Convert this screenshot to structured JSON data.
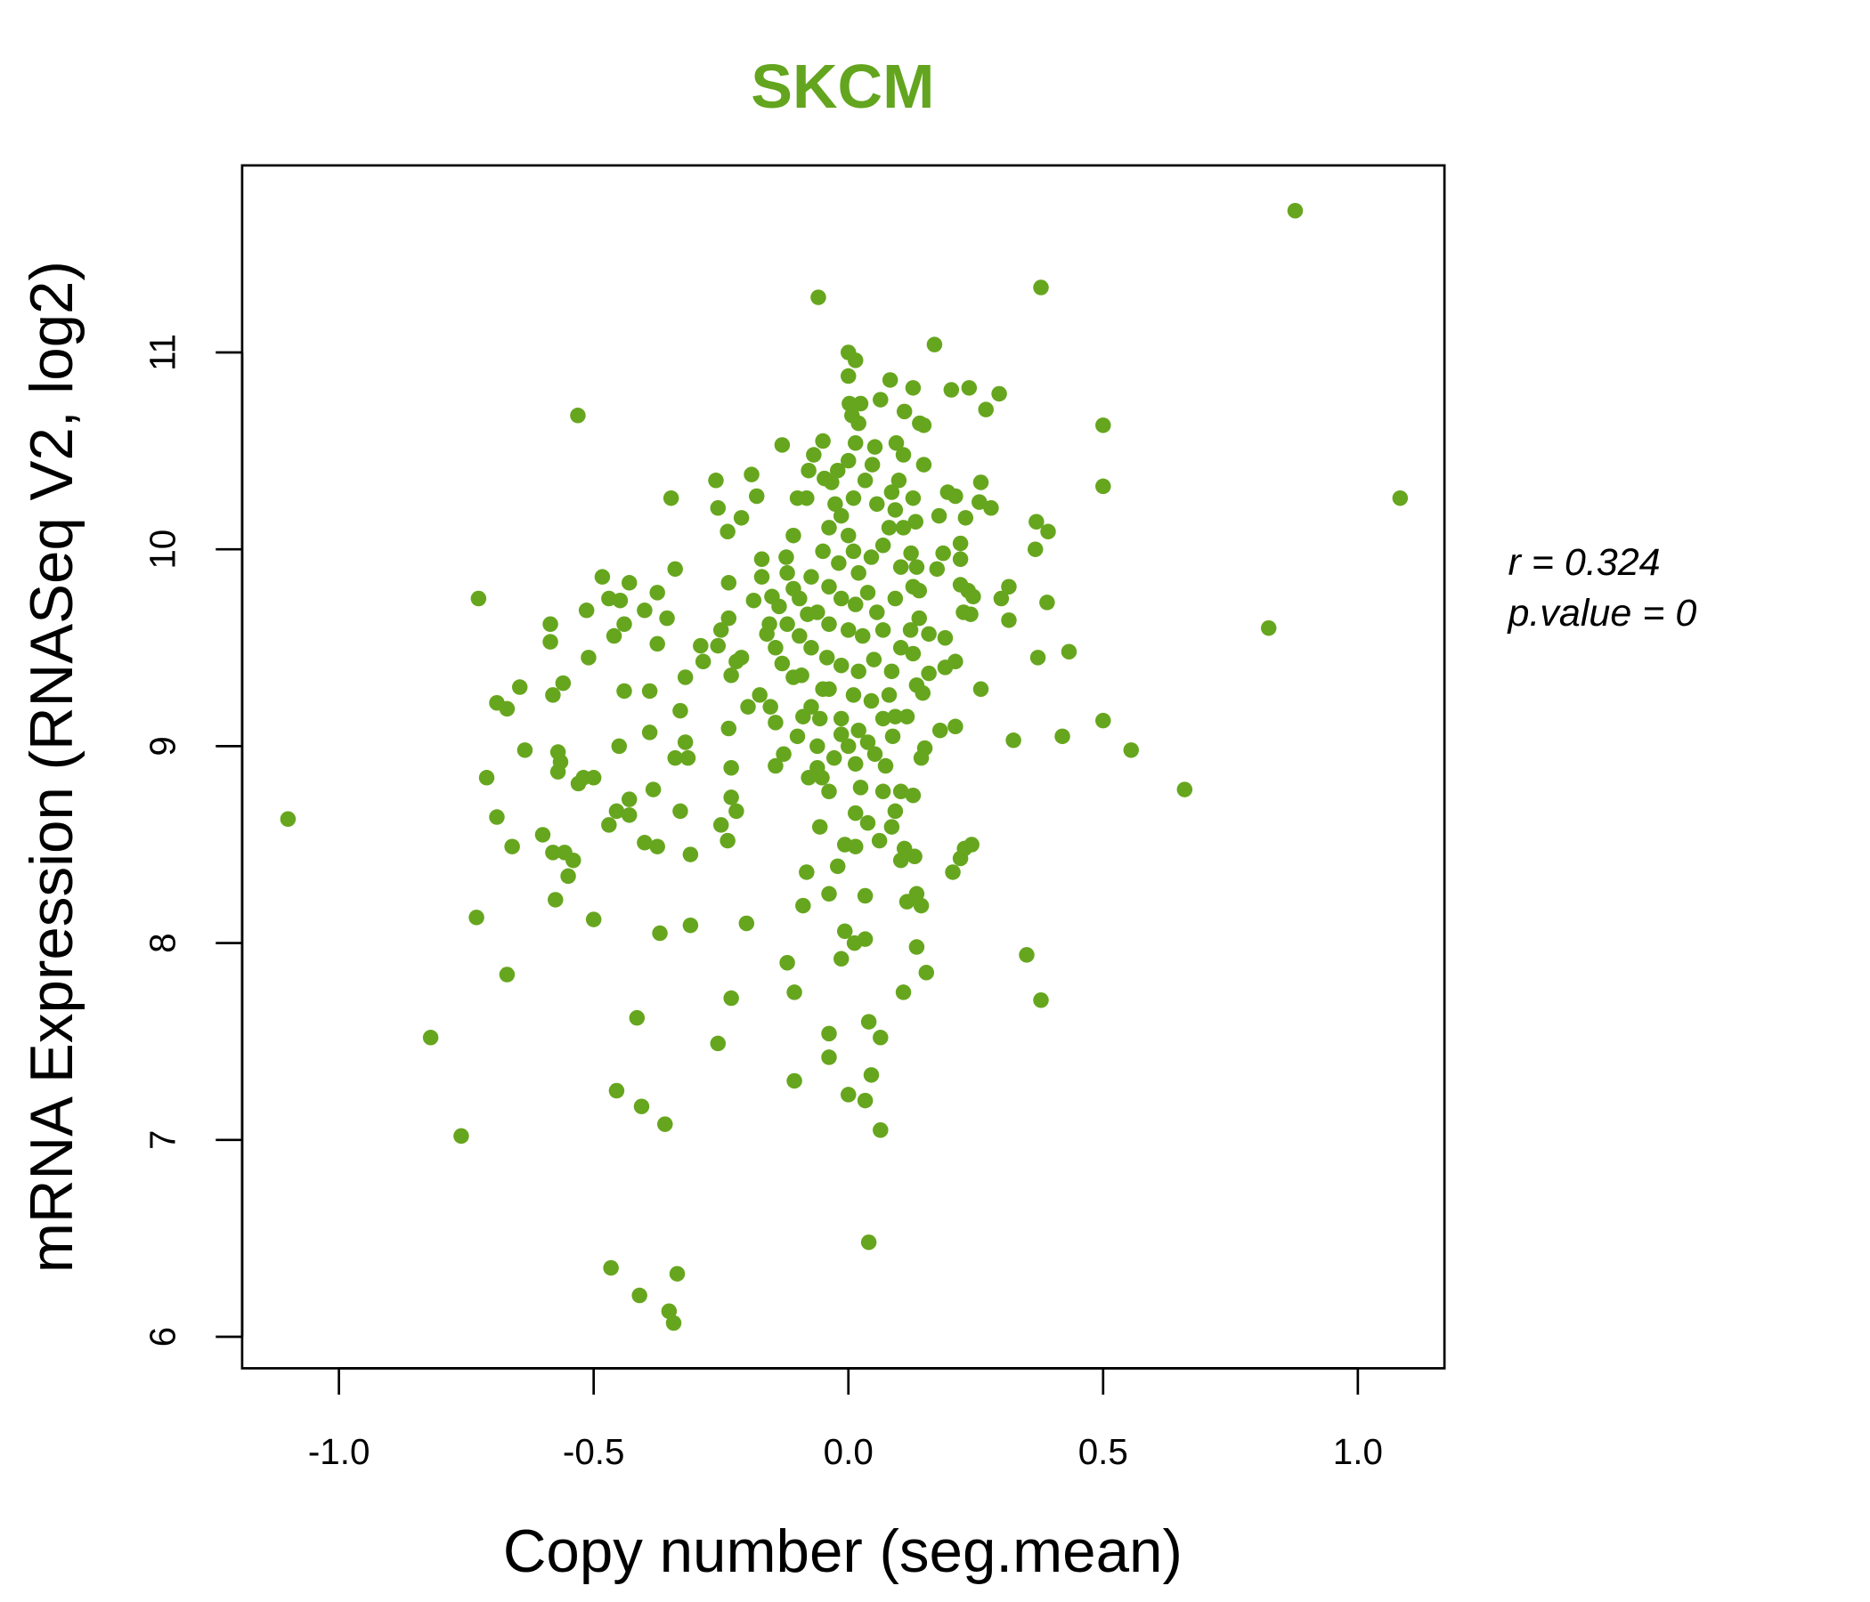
{
  "chart_data": {
    "type": "scatter",
    "title": "SKCM",
    "xlabel": "Copy number (seg.mean)",
    "ylabel": "mRNA Expression (RNASeq V2, log2)",
    "xlim": [
      -1.19,
      1.17
    ],
    "ylim": [
      5.84,
      11.95
    ],
    "x_ticks": [
      -1.0,
      -0.5,
      0.0,
      0.5,
      1.0
    ],
    "x_tick_labels": [
      "-1.0",
      "-0.5",
      "0.0",
      "0.5",
      "1.0"
    ],
    "y_ticks": [
      6,
      7,
      8,
      9,
      10,
      11
    ],
    "y_tick_labels": [
      "6",
      "7",
      "8",
      "9",
      "10",
      "11"
    ],
    "grid": false,
    "annotations": {
      "r": "r = 0.324",
      "p": "p.value = 0"
    },
    "colors": {
      "title": "#63A51E",
      "points": "#66A61E"
    },
    "points": [
      [
        0.877,
        11.72
      ],
      [
        0.378,
        11.33
      ],
      [
        -0.059,
        11.28
      ],
      [
        0.169,
        11.04
      ],
      [
        1.083,
        10.26
      ],
      [
        0.825,
        9.6
      ],
      [
        0.66,
        8.78
      ],
      [
        -1.1,
        8.63
      ],
      [
        0.5,
        10.63
      ],
      [
        0.5,
        10.32
      ],
      [
        0.5,
        9.13
      ],
      [
        0.555,
        8.98
      ],
      [
        0.42,
        9.05
      ],
      [
        0.324,
        9.03
      ],
      [
        0.433,
        9.48
      ],
      [
        0.372,
        9.45
      ],
      [
        0.392,
        10.09
      ],
      [
        0.369,
        10.14
      ],
      [
        0.367,
        10.0
      ],
      [
        0.39,
        9.73
      ],
      [
        0.315,
        9.81
      ],
      [
        0.315,
        9.64
      ],
      [
        0.3,
        9.75
      ],
      [
        0.35,
        7.94
      ],
      [
        0.378,
        7.71
      ],
      [
        -0.531,
        10.68
      ],
      [
        -0.348,
        10.26
      ],
      [
        -0.726,
        9.75
      ],
      [
        -0.82,
        7.52
      ],
      [
        -0.76,
        7.02
      ],
      [
        -0.73,
        8.13
      ],
      [
        -0.67,
        7.84
      ],
      [
        -0.71,
        8.84
      ],
      [
        -0.69,
        8.64
      ],
      [
        -0.66,
        8.49
      ],
      [
        -0.69,
        9.22
      ],
      [
        -0.67,
        9.19
      ],
      [
        -0.645,
        9.3
      ],
      [
        -0.635,
        8.98
      ],
      [
        -0.585,
        9.62
      ],
      [
        -0.585,
        9.53
      ],
      [
        -0.58,
        9.26
      ],
      [
        -0.56,
        9.32
      ],
      [
        -0.6,
        8.55
      ],
      [
        -0.58,
        8.46
      ],
      [
        -0.557,
        8.46
      ],
      [
        -0.54,
        8.42
      ],
      [
        -0.55,
        8.34
      ],
      [
        -0.575,
        8.22
      ],
      [
        -0.57,
        8.97
      ],
      [
        -0.565,
        8.92
      ],
      [
        -0.57,
        8.87
      ],
      [
        -0.53,
        8.81
      ],
      [
        -0.52,
        8.84
      ],
      [
        -0.5,
        8.84
      ],
      [
        -0.5,
        8.12
      ],
      [
        -0.51,
        9.45
      ],
      [
        -0.514,
        9.69
      ],
      [
        -0.483,
        9.86
      ],
      [
        -0.47,
        9.75
      ],
      [
        -0.46,
        9.56
      ],
      [
        -0.448,
        9.74
      ],
      [
        -0.44,
        9.62
      ],
      [
        -0.43,
        9.83
      ],
      [
        -0.44,
        9.28
      ],
      [
        -0.45,
        9.0
      ],
      [
        -0.47,
        8.6
      ],
      [
        -0.455,
        8.67
      ],
      [
        -0.43,
        8.65
      ],
      [
        -0.43,
        8.73
      ],
      [
        -0.4,
        9.69
      ],
      [
        -0.375,
        9.78
      ],
      [
        -0.375,
        9.52
      ],
      [
        -0.356,
        9.65
      ],
      [
        -0.34,
        9.9
      ],
      [
        -0.39,
        9.28
      ],
      [
        -0.39,
        9.07
      ],
      [
        -0.383,
        8.78
      ],
      [
        -0.4,
        8.51
      ],
      [
        -0.375,
        8.49
      ],
      [
        -0.33,
        9.18
      ],
      [
        -0.32,
        9.35
      ],
      [
        -0.32,
        9.02
      ],
      [
        -0.34,
        8.94
      ],
      [
        -0.315,
        8.94
      ],
      [
        -0.33,
        8.67
      ],
      [
        -0.31,
        8.45
      ],
      [
        -0.37,
        8.05
      ],
      [
        -0.31,
        8.09
      ],
      [
        -0.415,
        7.62
      ],
      [
        -0.455,
        7.25
      ],
      [
        -0.406,
        7.17
      ],
      [
        -0.36,
        7.08
      ],
      [
        -0.466,
        6.35
      ],
      [
        -0.41,
        6.21
      ],
      [
        -0.336,
        6.32
      ],
      [
        -0.352,
        6.13
      ],
      [
        -0.343,
        6.07
      ],
      [
        -0.26,
        10.35
      ],
      [
        -0.256,
        10.21
      ],
      [
        -0.237,
        10.09
      ],
      [
        -0.21,
        10.16
      ],
      [
        -0.19,
        10.38
      ],
      [
        -0.18,
        10.27
      ],
      [
        -0.13,
        10.53
      ],
      [
        -0.29,
        9.51
      ],
      [
        -0.285,
        9.43
      ],
      [
        -0.256,
        9.51
      ],
      [
        -0.25,
        9.59
      ],
      [
        -0.235,
        9.83
      ],
      [
        -0.235,
        9.65
      ],
      [
        -0.23,
        9.36
      ],
      [
        -0.22,
        9.43
      ],
      [
        -0.21,
        9.45
      ],
      [
        -0.235,
        9.09
      ],
      [
        -0.23,
        8.89
      ],
      [
        -0.23,
        8.74
      ],
      [
        -0.22,
        8.67
      ],
      [
        -0.25,
        8.6
      ],
      [
        -0.237,
        8.52
      ],
      [
        -0.2,
        8.1
      ],
      [
        -0.23,
        7.72
      ],
      [
        -0.256,
        7.49
      ],
      [
        -0.197,
        9.2
      ],
      [
        -0.174,
        9.26
      ],
      [
        -0.186,
        9.74
      ],
      [
        -0.17,
        9.95
      ],
      [
        -0.17,
        9.86
      ],
      [
        -0.15,
        9.76
      ],
      [
        -0.16,
        9.57
      ],
      [
        -0.143,
        9.5
      ],
      [
        -0.13,
        9.42
      ],
      [
        -0.153,
        9.2
      ],
      [
        -0.143,
        9.12
      ],
      [
        -0.143,
        8.9
      ],
      [
        -0.127,
        8.96
      ],
      [
        -0.12,
        7.9
      ],
      [
        -0.106,
        7.75
      ],
      [
        -0.106,
        7.3
      ],
      [
        -0.122,
        9.96
      ],
      [
        -0.12,
        9.88
      ],
      [
        -0.108,
        10.07
      ],
      [
        -0.1,
        10.26
      ],
      [
        -0.082,
        10.26
      ],
      [
        -0.078,
        10.4
      ],
      [
        -0.05,
        10.55
      ],
      [
        -0.068,
        10.48
      ],
      [
        -0.047,
        10.36
      ],
      [
        -0.033,
        10.34
      ],
      [
        -0.021,
        10.4
      ],
      [
        -0.096,
        9.75
      ],
      [
        -0.08,
        9.67
      ],
      [
        -0.092,
        9.36
      ],
      [
        -0.089,
        9.15
      ],
      [
        -0.1,
        9.05
      ],
      [
        -0.078,
        8.84
      ],
      [
        -0.061,
        8.89
      ],
      [
        -0.052,
        8.84
      ],
      [
        -0.038,
        8.77
      ],
      [
        -0.056,
        8.59
      ],
      [
        -0.089,
        8.19
      ],
      [
        -0.082,
        8.36
      ],
      [
        -0.038,
        8.25
      ],
      [
        -0.021,
        8.39
      ],
      [
        -0.038,
        7.54
      ],
      [
        -0.038,
        7.42
      ],
      [
        -0.014,
        7.92
      ],
      [
        -0.007,
        8.06
      ],
      [
        0.0,
        7.23
      ],
      [
        0.033,
        7.2
      ],
      [
        0.012,
        8.0
      ],
      [
        0.033,
        8.02
      ],
      [
        0.04,
        7.6
      ],
      [
        0.045,
        7.33
      ],
      [
        0.063,
        7.05
      ],
      [
        0.063,
        7.52
      ],
      [
        0.04,
        6.48
      ],
      [
        0.033,
        8.24
      ],
      [
        -0.007,
        8.5
      ],
      [
        0.014,
        8.49
      ],
      [
        0.014,
        8.66
      ],
      [
        0.038,
        8.61
      ],
      [
        0.024,
        8.79
      ],
      [
        0.068,
        8.77
      ],
      [
        0.073,
        8.9
      ],
      [
        0.061,
        8.52
      ],
      [
        0.085,
        8.59
      ],
      [
        0.092,
        8.67
      ],
      [
        0.103,
        8.77
      ],
      [
        0.127,
        8.75
      ],
      [
        0.103,
        8.42
      ],
      [
        0.11,
        8.48
      ],
      [
        0.13,
        8.44
      ],
      [
        0.115,
        8.21
      ],
      [
        0.134,
        8.25
      ],
      [
        0.143,
        8.19
      ],
      [
        0.134,
        7.98
      ],
      [
        0.153,
        7.85
      ],
      [
        0.108,
        7.75
      ],
      [
        0.205,
        8.36
      ],
      [
        0.22,
        8.43
      ],
      [
        0.228,
        8.48
      ],
      [
        0.242,
        8.5
      ],
      [
        0.087,
        9.05
      ],
      [
        0.092,
        9.15
      ],
      [
        0.115,
        9.15
      ],
      [
        0.143,
        8.94
      ],
      [
        0.15,
        8.99
      ],
      [
        0.18,
        9.08
      ],
      [
        0.21,
        9.1
      ],
      [
        0.146,
        9.27
      ],
      [
        0.134,
        9.31
      ],
      [
        0.158,
        9.37
      ],
      [
        0.19,
        9.4
      ],
      [
        0.21,
        9.43
      ],
      [
        0.19,
        9.55
      ],
      [
        0.26,
        9.29
      ],
      [
        0.158,
        9.57
      ],
      [
        0.139,
        9.65
      ],
      [
        0.139,
        9.79
      ],
      [
        0.174,
        9.9
      ],
      [
        0.186,
        9.98
      ],
      [
        0.22,
        10.03
      ],
      [
        0.22,
        9.95
      ],
      [
        0.22,
        9.82
      ],
      [
        0.235,
        9.79
      ],
      [
        0.245,
        9.76
      ],
      [
        0.226,
        9.68
      ],
      [
        0.24,
        9.67
      ],
      [
        0.178,
        10.17
      ],
      [
        0.23,
        10.16
      ],
      [
        0.195,
        10.29
      ],
      [
        0.21,
        10.27
      ],
      [
        0.26,
        10.34
      ],
      [
        0.257,
        10.24
      ],
      [
        0.28,
        10.21
      ],
      [
        0.148,
        10.43
      ],
      [
        0.127,
        10.26
      ],
      [
        0.132,
        10.14
      ],
      [
        0.123,
        9.98
      ],
      [
        0.134,
        9.91
      ],
      [
        0.103,
        9.91
      ],
      [
        0.202,
        10.81
      ],
      [
        0.237,
        10.82
      ],
      [
        0.296,
        10.79
      ],
      [
        0.27,
        10.71
      ],
      [
        0.127,
        10.82
      ],
      [
        0.11,
        10.7
      ],
      [
        0.14,
        10.64
      ],
      [
        0.148,
        10.63
      ],
      [
        0.082,
        10.86
      ],
      [
        0.063,
        10.76
      ],
      [
        0.094,
        10.54
      ],
      [
        0.108,
        10.48
      ],
      [
        0.099,
        10.35
      ],
      [
        0.085,
        10.29
      ],
      [
        0.052,
        10.52
      ],
      [
        0.047,
        10.43
      ],
      [
        0.014,
        10.96
      ],
      [
        0.0,
        11.0
      ],
      [
        0.0,
        10.88
      ],
      [
        0.002,
        10.74
      ],
      [
        0.024,
        10.74
      ],
      [
        0.007,
        10.68
      ],
      [
        0.02,
        10.64
      ],
      [
        -0.014,
        10.17
      ],
      [
        0.0,
        10.07
      ],
      [
        0.01,
        9.99
      ],
      [
        -0.019,
        9.93
      ],
      [
        0.02,
        9.88
      ],
      [
        0.045,
        9.96
      ],
      [
        0.068,
        10.02
      ],
      [
        0.08,
        10.11
      ],
      [
        -0.038,
        9.81
      ],
      [
        -0.014,
        9.75
      ],
      [
        0.014,
        9.72
      ],
      [
        0.038,
        9.78
      ],
      [
        0.056,
        9.68
      ],
      [
        0.092,
        9.75
      ],
      [
        -0.061,
        9.68
      ],
      [
        -0.038,
        9.62
      ],
      [
        0.0,
        9.59
      ],
      [
        0.028,
        9.56
      ],
      [
        0.068,
        9.59
      ],
      [
        0.103,
        9.5
      ],
      [
        0.127,
        9.47
      ],
      [
        -0.096,
        9.56
      ],
      [
        -0.073,
        9.5
      ],
      [
        -0.042,
        9.45
      ],
      [
        -0.014,
        9.41
      ],
      [
        0.02,
        9.38
      ],
      [
        0.05,
        9.44
      ],
      [
        0.085,
        9.38
      ],
      [
        -0.038,
        9.29
      ],
      [
        0.01,
        9.26
      ],
      [
        0.045,
        9.23
      ],
      [
        -0.014,
        9.14
      ],
      [
        0.02,
        9.08
      ],
      [
        0.0,
        9.0
      ],
      [
        -0.028,
        8.94
      ],
      [
        0.014,
        8.91
      ],
      [
        -0.014,
        9.06
      ],
      [
        -0.05,
        9.29
      ],
      [
        -0.108,
        9.35
      ],
      [
        -0.12,
        9.62
      ],
      [
        -0.136,
        9.71
      ],
      [
        -0.073,
        9.86
      ],
      [
        -0.05,
        9.99
      ],
      [
        -0.038,
        10.11
      ],
      [
        -0.026,
        10.23
      ],
      [
        0.01,
        10.26
      ],
      [
        0.033,
        10.35
      ],
      [
        0.0,
        10.45
      ],
      [
        0.014,
        10.54
      ],
      [
        0.056,
        10.23
      ],
      [
        0.092,
        10.2
      ],
      [
        0.108,
        10.11
      ],
      [
        0.127,
        9.81
      ],
      [
        0.122,
        9.59
      ],
      [
        0.08,
        9.26
      ],
      [
        0.068,
        9.14
      ],
      [
        0.038,
        9.02
      ],
      [
        0.052,
        8.96
      ],
      [
        -0.056,
        9.14
      ],
      [
        -0.073,
        9.2
      ],
      [
        -0.061,
        9.0
      ],
      [
        -0.155,
        9.62
      ],
      [
        -0.108,
        9.8
      ]
    ]
  }
}
